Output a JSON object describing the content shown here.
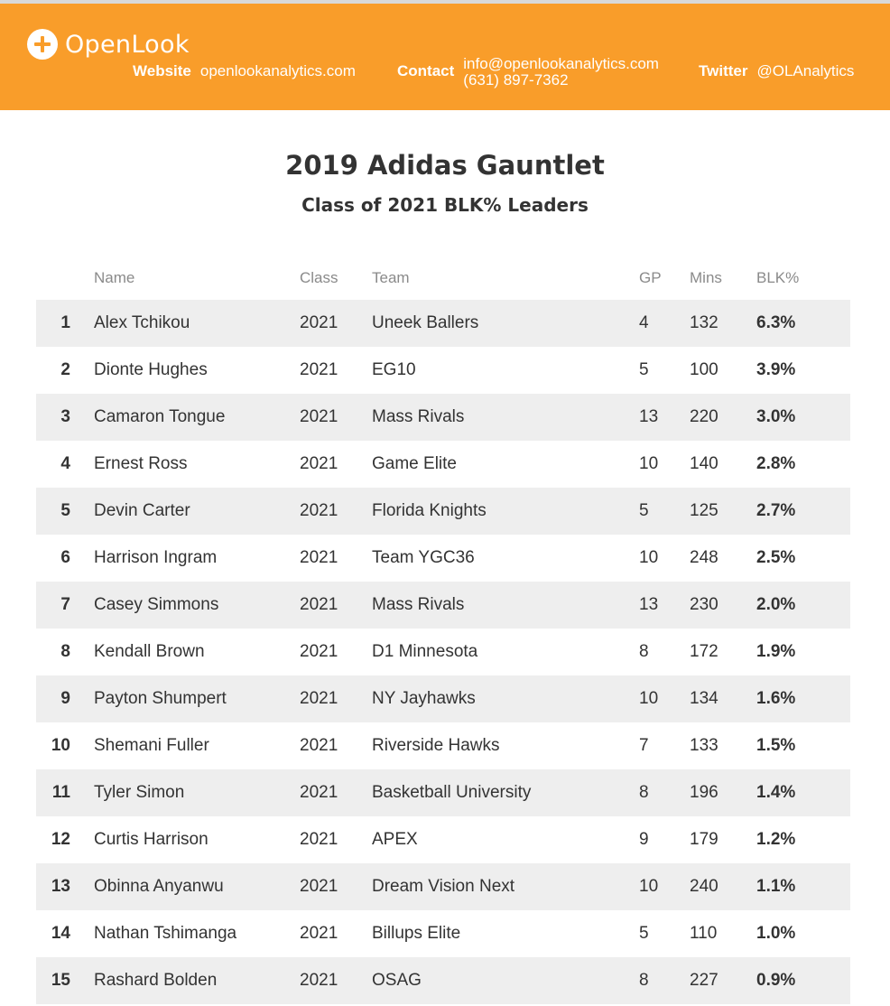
{
  "header": {
    "brand": "OpenLook",
    "website_label": "Website",
    "website_value": "openlookanalytics.com",
    "contact_label": "Contact",
    "contact_email": "info@openlookanalytics.com",
    "contact_phone": "(631) 897-7362",
    "twitter_label": "Twitter",
    "twitter_value": "@OLAnalytics",
    "color": "#f99d2a"
  },
  "title": "2019 Adidas Gauntlet",
  "subtitle": "Class of 2021 BLK% Leaders",
  "table": {
    "columns": [
      "",
      "Name",
      "Class",
      "Team",
      "GP",
      "Mins",
      "BLK%"
    ],
    "rows": [
      [
        "1",
        "Alex Tchikou",
        "2021",
        "Uneek Ballers",
        "4",
        "132",
        "6.3%"
      ],
      [
        "2",
        "Dionte Hughes",
        "2021",
        "EG10",
        "5",
        "100",
        "3.9%"
      ],
      [
        "3",
        "Camaron Tongue",
        "2021",
        "Mass Rivals",
        "13",
        "220",
        "3.0%"
      ],
      [
        "4",
        "Ernest Ross",
        "2021",
        "Game Elite",
        "10",
        "140",
        "2.8%"
      ],
      [
        "5",
        "Devin Carter",
        "2021",
        "Florida Knights",
        "5",
        "125",
        "2.7%"
      ],
      [
        "6",
        "Harrison Ingram",
        "2021",
        "Team YGC36",
        "10",
        "248",
        "2.5%"
      ],
      [
        "7",
        "Casey Simmons",
        "2021",
        "Mass Rivals",
        "13",
        "230",
        "2.0%"
      ],
      [
        "8",
        "Kendall Brown",
        "2021",
        "D1 Minnesota",
        "8",
        "172",
        "1.9%"
      ],
      [
        "9",
        "Payton Shumpert",
        "2021",
        "NY Jayhawks",
        "10",
        "134",
        "1.6%"
      ],
      [
        "10",
        "Shemani Fuller",
        "2021",
        "Riverside Hawks",
        "7",
        "133",
        "1.5%"
      ],
      [
        "11",
        "Tyler Simon",
        "2021",
        "Basketball University",
        "8",
        "196",
        "1.4%"
      ],
      [
        "12",
        "Curtis Harrison",
        "2021",
        "APEX",
        "9",
        "179",
        "1.2%"
      ],
      [
        "13",
        "Obinna Anyanwu",
        "2021",
        "Dream Vision Next",
        "10",
        "240",
        "1.1%"
      ],
      [
        "14",
        "Nathan Tshimanga",
        "2021",
        "Billups Elite",
        "5",
        "110",
        "1.0%"
      ],
      [
        "15",
        "Rashard Bolden",
        "2021",
        "OSAG",
        "8",
        "227",
        "0.9%"
      ]
    ]
  }
}
